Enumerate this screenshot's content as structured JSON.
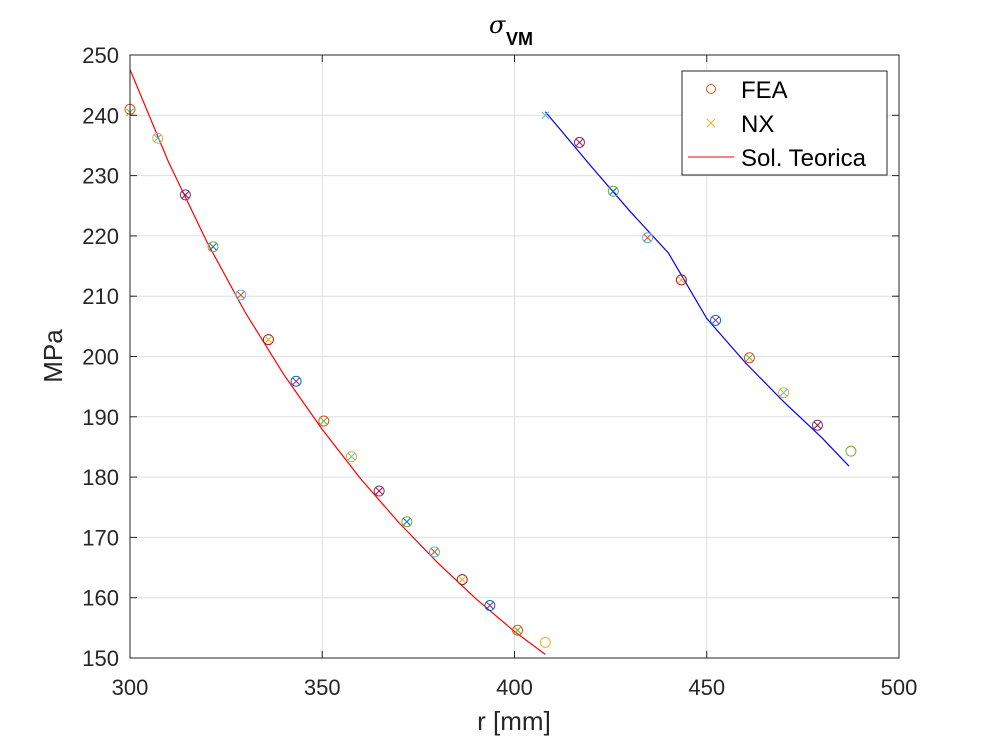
{
  "chart_data": {
    "type": "scatter",
    "title": "σ",
    "title_subscript": "VM",
    "xlabel": "r [mm]",
    "ylabel": "MPa",
    "xlim": [
      300,
      500
    ],
    "ylim": [
      150,
      250
    ],
    "xticks": [
      300,
      350,
      400,
      450,
      500
    ],
    "yticks": [
      150,
      160,
      170,
      180,
      190,
      200,
      210,
      220,
      230,
      240,
      250
    ],
    "xtick_labels": [
      "300",
      "350",
      "400",
      "450",
      "500"
    ],
    "ytick_labels": [
      "150",
      "160",
      "170",
      "180",
      "190",
      "200",
      "210",
      "220",
      "230",
      "240",
      "250"
    ],
    "grid": true,
    "legend_position": "top-right",
    "legend": [
      "FEA",
      "NX",
      "Sol. Teorica"
    ],
    "marker_colors": [
      "#d95319",
      "#edb120",
      "#7e2f8e",
      "#77ac30",
      "#4dbeee",
      "#a2142f",
      "#0072bd"
    ],
    "series": [
      {
        "name": "FEA",
        "marker": "circle",
        "x": [
          300,
          307.2,
          314.4,
          321.6,
          328.8,
          336.0,
          343.2,
          350.4,
          357.6,
          364.8,
          372.0,
          379.2,
          386.4,
          393.6,
          400.8,
          408.0,
          416.9,
          425.7,
          434.6,
          443.4,
          452.3,
          461.1,
          470.0,
          478.8,
          487.5
        ],
        "y": [
          241.0,
          236.2,
          226.8,
          218.2,
          210.2,
          202.8,
          195.9,
          189.3,
          183.4,
          177.7,
          172.6,
          167.6,
          163.0,
          158.7,
          154.6,
          152.6,
          235.5,
          227.4,
          219.7,
          212.7,
          206.0,
          199.8,
          194.0,
          188.6,
          184.3
        ]
      },
      {
        "name": "NX",
        "marker": "x",
        "x": [
          300,
          307.2,
          314.4,
          321.6,
          328.8,
          336.0,
          343.2,
          350.4,
          357.6,
          364.8,
          372.0,
          379.2,
          386.4,
          393.6,
          400.8,
          408.0,
          416.9,
          425.7,
          434.6,
          443.4,
          452.3,
          461.1,
          470.0,
          478.8
        ],
        "y": [
          240.5,
          236.2,
          226.8,
          218.2,
          210.2,
          202.8,
          195.9,
          189.3,
          183.4,
          177.7,
          172.6,
          167.6,
          163.0,
          158.7,
          154.6,
          240.0,
          235.5,
          227.4,
          219.7,
          212.7,
          206.0,
          199.8,
          194.0,
          188.6
        ]
      },
      {
        "name": "Sol. Teorica",
        "type": "line",
        "color": "#ff0000",
        "x": [
          300,
          310,
          320,
          330,
          340,
          350,
          360,
          370,
          380,
          390,
          400,
          408
        ],
        "y": [
          247.6,
          232.3,
          219.0,
          207.3,
          197.0,
          187.9,
          179.7,
          172.4,
          165.8,
          159.8,
          154.4,
          150.6
        ]
      },
      {
        "type": "line",
        "color": "#0000ff",
        "x": [
          408,
          420,
          430,
          440,
          450,
          460,
          470,
          480,
          487
        ],
        "y": [
          240.6,
          231.5,
          224.1,
          217.2,
          206.3,
          199.0,
          192.5,
          186.5,
          181.8
        ]
      }
    ]
  }
}
